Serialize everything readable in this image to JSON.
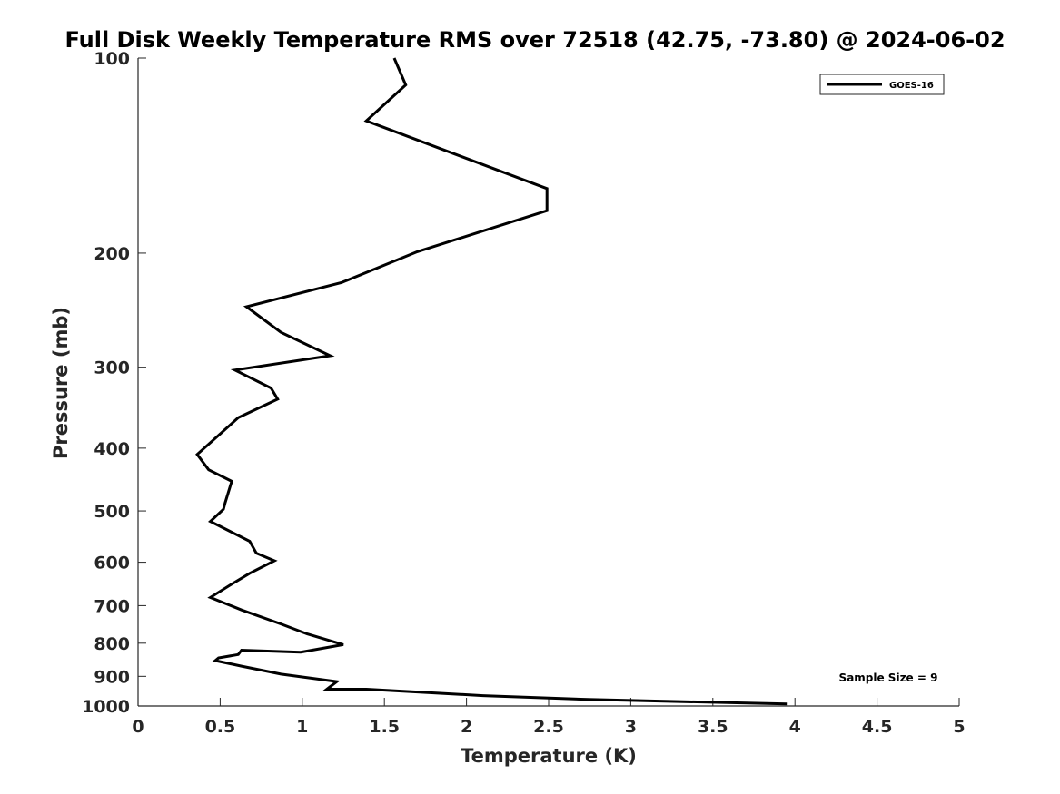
{
  "chart_data": {
    "type": "line",
    "title": "Full Disk Weekly Temperature RMS over 72518 (42.75, -73.80) @ 2024-06-02",
    "xlabel": "Temperature (K)",
    "ylabel": "Pressure (mb)",
    "xlim": [
      0,
      5
    ],
    "ylim": [
      100,
      1000
    ],
    "yscale": "log",
    "y_reversed": true,
    "x_ticks": [
      "0",
      "0.5",
      "1",
      "1.5",
      "2",
      "2.5",
      "3",
      "3.5",
      "4",
      "4.5",
      "5"
    ],
    "y_ticks": [
      "100",
      "200",
      "300",
      "400",
      "500",
      "600",
      "700",
      "800",
      "900",
      "1000"
    ],
    "grid": false,
    "legend_position": "top-right",
    "series": [
      {
        "name": "GOES-16",
        "color": "#000000",
        "x": [
          1.56,
          1.63,
          1.39,
          2.49,
          2.49,
          1.7,
          1.24,
          0.66,
          0.87,
          1.17,
          0.59,
          0.81,
          0.85,
          0.61,
          0.36,
          0.43,
          0.57,
          0.53,
          0.52,
          0.44,
          0.68,
          0.72,
          0.83,
          0.68,
          0.56,
          0.44,
          0.63,
          0.87,
          1.03,
          1.25,
          0.99,
          0.63,
          0.61,
          0.49,
          0.47,
          0.63,
          0.87,
          1.21,
          1.15,
          1.39,
          2.1,
          2.74,
          3.95
        ],
        "y": [
          100,
          110,
          125,
          159,
          172,
          199,
          222,
          242,
          265,
          288,
          303,
          323,
          336,
          359,
          409,
          432,
          450,
          486,
          497,
          519,
          557,
          581,
          597,
          624,
          651,
          680,
          711,
          747,
          774,
          804,
          826,
          820,
          833,
          843,
          851,
          868,
          893,
          917,
          942,
          942,
          964,
          977,
          993
        ]
      }
    ],
    "annotations": [
      "Sample Size = 9"
    ]
  }
}
